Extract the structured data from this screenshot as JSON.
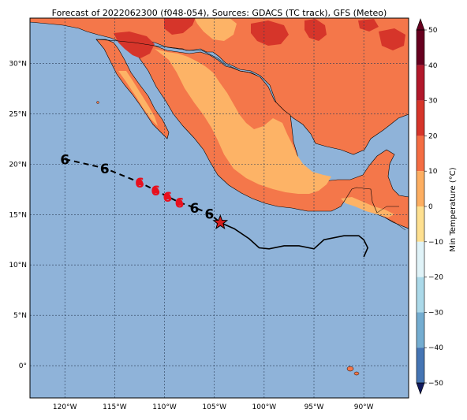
{
  "title": "Forecast of 2022062300 (f048-054), Sources: GDACS (TC track), GFS (Meteo)",
  "map": {
    "lon_range": [
      -123.5,
      -85.5
    ],
    "lat_range": [
      -3.2,
      34.5
    ],
    "lon_ticks": [
      "120°W",
      "115°W",
      "110°W",
      "105°W",
      "100°W",
      "95°W",
      "90°W"
    ],
    "lat_ticks": [
      "0°",
      "5°N",
      "10°N",
      "15°N",
      "20°N",
      "25°N",
      "30°N"
    ],
    "ocean_color": "#8fb3d9",
    "grid": true
  },
  "colorbar": {
    "label": "Min Temperature (°C)",
    "ticks": [
      "50",
      "40",
      "30",
      "20",
      "10",
      "0",
      "−10",
      "−20",
      "−30",
      "−40",
      "−50"
    ],
    "colors": [
      "#67001f",
      "#b2182b",
      "#d6352a",
      "#f46d43",
      "#fdae61",
      "#fee090",
      "#e0f3f8",
      "#abd9e9",
      "#74add1",
      "#4575b4",
      "#313695"
    ],
    "visible_land_colors": {
      "0_10": "#fee090",
      "10_20": "#fdb366",
      "20_30": "#f4774a",
      "30_40": "#d6352a"
    }
  },
  "track": {
    "past_line_color": "#000000",
    "forecast_markers": [
      {
        "lon": -120.0,
        "lat": 20.5,
        "type": "past",
        "color": "#000000"
      },
      {
        "lon": -116.0,
        "lat": 19.6,
        "type": "past",
        "color": "#000000"
      },
      {
        "lon": -112.5,
        "lat": 18.2,
        "type": "forecast",
        "color": "#e8101e"
      },
      {
        "lon": -110.9,
        "lat": 17.4,
        "type": "forecast",
        "color": "#e8101e"
      },
      {
        "lon": -109.7,
        "lat": 16.8,
        "type": "forecast",
        "color": "#e8101e"
      },
      {
        "lon": -108.5,
        "lat": 16.2,
        "type": "forecast",
        "color": "#e8101e"
      },
      {
        "lon": -107.0,
        "lat": 15.7,
        "type": "past",
        "color": "#000000"
      },
      {
        "lon": -105.5,
        "lat": 15.1,
        "type": "past",
        "color": "#000000"
      }
    ],
    "current_position": {
      "lon": -104.4,
      "lat": 14.2,
      "color": "#d41d1d"
    }
  }
}
